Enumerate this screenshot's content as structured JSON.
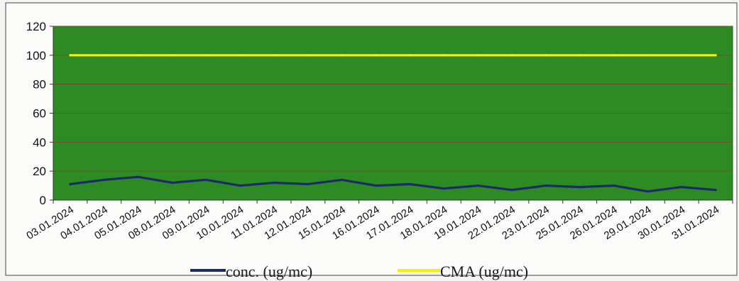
{
  "chart_data": {
    "type": "line",
    "title": "",
    "xlabel": "",
    "ylabel": "",
    "ylim": [
      0,
      120
    ],
    "yticks": [
      0,
      20,
      40,
      60,
      80,
      100,
      120
    ],
    "grid": true,
    "legend_position": "bottom",
    "plot_background": "#2e8b23",
    "categories": [
      "03.01.2024",
      "04.01.2024",
      "05.01.2024",
      "08.01.2024",
      "09.01.2024",
      "10.01.2024",
      "11.01.2024",
      "12.01.2024",
      "15.01.2024",
      "16.01.2024",
      "17.01.2024",
      "18.01.2024",
      "19.01.2024",
      "22.01.2024",
      "23.01.2024",
      "25.01.2024",
      "26.01.2024",
      "29.01.2024",
      "30.01.2024",
      "31.01.2024"
    ],
    "series": [
      {
        "name": "conc. (ug/mc)",
        "color": "#1c2a6b",
        "values": [
          11,
          14,
          16,
          12,
          14,
          10,
          12,
          11,
          14,
          10,
          11,
          8,
          10,
          7,
          10,
          9,
          10,
          6,
          9,
          7
        ]
      },
      {
        "name": "CMA (ug/mc)",
        "color": "#f2f200",
        "values": [
          100,
          100,
          100,
          100,
          100,
          100,
          100,
          100,
          100,
          100,
          100,
          100,
          100,
          100,
          100,
          100,
          100,
          100,
          100,
          100
        ]
      }
    ]
  }
}
